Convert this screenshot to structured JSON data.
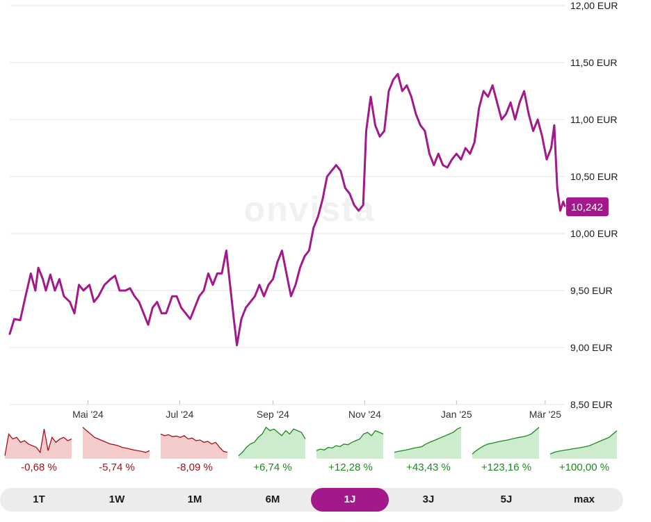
{
  "colors": {
    "line": "#a3198c",
    "badge": "#a3198c",
    "negative": "#a3101a",
    "positive": "#1c8a1f",
    "tab_active": "#a3198c"
  },
  "watermark": "onvista",
  "price_badge": "10,242",
  "chart_data": {
    "type": "line",
    "y_unit": "EUR",
    "ylim": [
      8.5,
      12.0
    ],
    "y_ticks": [
      8.5,
      9.0,
      9.5,
      10.0,
      10.5,
      11.0,
      11.5,
      12.0
    ],
    "y_tick_labels": [
      "8,50 EUR",
      "9,00 EUR",
      "9,50 EUR",
      "10,00 EUR",
      "10,50 EUR",
      "11,00 EUR",
      "11,50 EUR",
      "12,00 EUR"
    ],
    "x_range": [
      "2024-03-10",
      "2025-03-14"
    ],
    "x_ticks": [
      "2024-05-01",
      "2024-07-01",
      "2024-09-01",
      "2024-11-01",
      "2025-01-01",
      "2025-03-01"
    ],
    "x_tick_labels": [
      "Mai '24",
      "Jul '24",
      "Sep '24",
      "Nov '24",
      "Jan '25",
      "Mär '25"
    ],
    "grid": true,
    "series": [
      {
        "values": [
          [
            "2024-03-10",
            9.12
          ],
          [
            "2024-03-13",
            9.25
          ],
          [
            "2024-03-17",
            9.24
          ],
          [
            "2024-03-20",
            9.42
          ],
          [
            "2024-03-24",
            9.65
          ],
          [
            "2024-03-27",
            9.5
          ],
          [
            "2024-03-29",
            9.7
          ],
          [
            "2024-04-01",
            9.6
          ],
          [
            "2024-04-03",
            9.5
          ],
          [
            "2024-04-06",
            9.64
          ],
          [
            "2024-04-09",
            9.5
          ],
          [
            "2024-04-12",
            9.6
          ],
          [
            "2024-04-15",
            9.45
          ],
          [
            "2024-04-19",
            9.4
          ],
          [
            "2024-04-22",
            9.3
          ],
          [
            "2024-04-25",
            9.55
          ],
          [
            "2024-04-28",
            9.5
          ],
          [
            "2024-05-02",
            9.55
          ],
          [
            "2024-05-05",
            9.4
          ],
          [
            "2024-05-08",
            9.45
          ],
          [
            "2024-05-12",
            9.55
          ],
          [
            "2024-05-16",
            9.6
          ],
          [
            "2024-05-19",
            9.63
          ],
          [
            "2024-05-22",
            9.5
          ],
          [
            "2024-05-26",
            9.5
          ],
          [
            "2024-05-29",
            9.52
          ],
          [
            "2024-06-01",
            9.45
          ],
          [
            "2024-06-04",
            9.4
          ],
          [
            "2024-06-07",
            9.3
          ],
          [
            "2024-06-10",
            9.2
          ],
          [
            "2024-06-13",
            9.35
          ],
          [
            "2024-06-16",
            9.4
          ],
          [
            "2024-06-19",
            9.3
          ],
          [
            "2024-06-22",
            9.3
          ],
          [
            "2024-06-26",
            9.45
          ],
          [
            "2024-06-29",
            9.45
          ],
          [
            "2024-07-02",
            9.35
          ],
          [
            "2024-07-05",
            9.3
          ],
          [
            "2024-07-08",
            9.25
          ],
          [
            "2024-07-11",
            9.35
          ],
          [
            "2024-07-14",
            9.45
          ],
          [
            "2024-07-17",
            9.5
          ],
          [
            "2024-07-20",
            9.65
          ],
          [
            "2024-07-23",
            9.55
          ],
          [
            "2024-07-26",
            9.65
          ],
          [
            "2024-07-29",
            9.65
          ],
          [
            "2024-08-01",
            9.85
          ],
          [
            "2024-08-06",
            9.25
          ],
          [
            "2024-08-08",
            9.02
          ],
          [
            "2024-08-11",
            9.25
          ],
          [
            "2024-08-14",
            9.35
          ],
          [
            "2024-08-17",
            9.4
          ],
          [
            "2024-08-20",
            9.45
          ],
          [
            "2024-08-23",
            9.55
          ],
          [
            "2024-08-26",
            9.45
          ],
          [
            "2024-08-29",
            9.55
          ],
          [
            "2024-09-01",
            9.6
          ],
          [
            "2024-09-04",
            9.75
          ],
          [
            "2024-09-07",
            9.85
          ],
          [
            "2024-09-10",
            9.65
          ],
          [
            "2024-09-13",
            9.45
          ],
          [
            "2024-09-16",
            9.55
          ],
          [
            "2024-09-19",
            9.7
          ],
          [
            "2024-09-22",
            9.8
          ],
          [
            "2024-09-25",
            9.85
          ],
          [
            "2024-09-28",
            10.05
          ],
          [
            "2024-10-01",
            10.15
          ],
          [
            "2024-10-04",
            10.3
          ],
          [
            "2024-10-07",
            10.5
          ],
          [
            "2024-10-10",
            10.55
          ],
          [
            "2024-10-13",
            10.6
          ],
          [
            "2024-10-16",
            10.55
          ],
          [
            "2024-10-19",
            10.4
          ],
          [
            "2024-10-22",
            10.35
          ],
          [
            "2024-10-25",
            10.25
          ],
          [
            "2024-10-28",
            10.2
          ],
          [
            "2024-10-31",
            10.25
          ],
          [
            "2024-11-02",
            10.9
          ],
          [
            "2024-11-05",
            11.2
          ],
          [
            "2024-11-08",
            10.95
          ],
          [
            "2024-11-11",
            10.85
          ],
          [
            "2024-11-14",
            10.9
          ],
          [
            "2024-11-17",
            11.25
          ],
          [
            "2024-11-20",
            11.35
          ],
          [
            "2024-11-23",
            11.4
          ],
          [
            "2024-11-26",
            11.25
          ],
          [
            "2024-11-29",
            11.3
          ],
          [
            "2024-12-02",
            11.2
          ],
          [
            "2024-12-05",
            11.05
          ],
          [
            "2024-12-08",
            10.95
          ],
          [
            "2024-12-11",
            10.9
          ],
          [
            "2024-12-14",
            10.7
          ],
          [
            "2024-12-17",
            10.6
          ],
          [
            "2024-12-20",
            10.7
          ],
          [
            "2024-12-23",
            10.6
          ],
          [
            "2024-12-26",
            10.58
          ],
          [
            "2024-12-29",
            10.65
          ],
          [
            "2025-01-01",
            10.7
          ],
          [
            "2025-01-04",
            10.65
          ],
          [
            "2025-01-07",
            10.75
          ],
          [
            "2025-01-10",
            10.7
          ],
          [
            "2025-01-13",
            10.8
          ],
          [
            "2025-01-16",
            11.1
          ],
          [
            "2025-01-19",
            11.25
          ],
          [
            "2025-01-22",
            11.2
          ],
          [
            "2025-01-25",
            11.3
          ],
          [
            "2025-01-28",
            11.15
          ],
          [
            "2025-01-31",
            11.0
          ],
          [
            "2025-02-03",
            11.05
          ],
          [
            "2025-02-06",
            11.15
          ],
          [
            "2025-02-09",
            11.0
          ],
          [
            "2025-02-12",
            11.15
          ],
          [
            "2025-02-15",
            11.25
          ],
          [
            "2025-02-18",
            11.05
          ],
          [
            "2025-02-21",
            10.9
          ],
          [
            "2025-02-24",
            11.0
          ],
          [
            "2025-02-27",
            10.85
          ],
          [
            "2025-03-02",
            10.65
          ],
          [
            "2025-03-05",
            10.75
          ],
          [
            "2025-03-07",
            10.95
          ],
          [
            "2025-03-09",
            10.4
          ],
          [
            "2025-03-11",
            10.2
          ],
          [
            "2025-03-13",
            10.28
          ],
          [
            "2025-03-14",
            10.242
          ]
        ]
      }
    ]
  },
  "performance": [
    {
      "label": "-0,68 %",
      "trend": "negative",
      "spark": [
        95,
        30,
        45,
        40,
        55,
        50,
        60,
        65,
        70,
        85,
        15,
        80,
        40,
        55,
        45,
        40,
        50,
        45
      ]
    },
    {
      "label": "-5,74 %",
      "trend": "negative",
      "spark": [
        10,
        20,
        30,
        40,
        45,
        50,
        55,
        60,
        62,
        65,
        70,
        72,
        75,
        78,
        80,
        82,
        85,
        80
      ]
    },
    {
      "label": "-8,09 %",
      "trend": "negative",
      "spark": [
        30,
        35,
        32,
        38,
        36,
        40,
        35,
        45,
        42,
        50,
        48,
        55,
        52,
        60,
        55,
        70,
        82,
        85
      ]
    },
    {
      "label": "+6,74 %",
      "trend": "positive",
      "spark": [
        95,
        85,
        70,
        60,
        55,
        40,
        30,
        10,
        20,
        15,
        25,
        35,
        20,
        30,
        15,
        20,
        25,
        45
      ]
    },
    {
      "label": "+12,28 %",
      "trend": "positive",
      "spark": [
        80,
        75,
        78,
        70,
        72,
        65,
        68,
        60,
        62,
        55,
        50,
        45,
        30,
        25,
        35,
        20,
        25,
        30
      ]
    },
    {
      "label": "+43,43 %",
      "trend": "positive",
      "spark": [
        85,
        82,
        80,
        78,
        75,
        72,
        70,
        68,
        60,
        55,
        50,
        45,
        40,
        35,
        30,
        25,
        15,
        10
      ]
    },
    {
      "label": "+123,16 %",
      "trend": "positive",
      "spark": [
        90,
        80,
        72,
        65,
        60,
        58,
        55,
        52,
        50,
        48,
        45,
        42,
        40,
        38,
        35,
        30,
        20,
        10
      ]
    },
    {
      "label": "+100,00 %",
      "trend": "positive",
      "spark": [
        90,
        85,
        82,
        80,
        78,
        76,
        74,
        72,
        70,
        68,
        65,
        60,
        55,
        50,
        45,
        40,
        30,
        20
      ]
    }
  ],
  "tabs": [
    {
      "label": "1T",
      "active": false
    },
    {
      "label": "1W",
      "active": false
    },
    {
      "label": "1M",
      "active": false
    },
    {
      "label": "6M",
      "active": false
    },
    {
      "label": "1J",
      "active": true
    },
    {
      "label": "3J",
      "active": false
    },
    {
      "label": "5J",
      "active": false
    },
    {
      "label": "max",
      "active": false
    }
  ]
}
